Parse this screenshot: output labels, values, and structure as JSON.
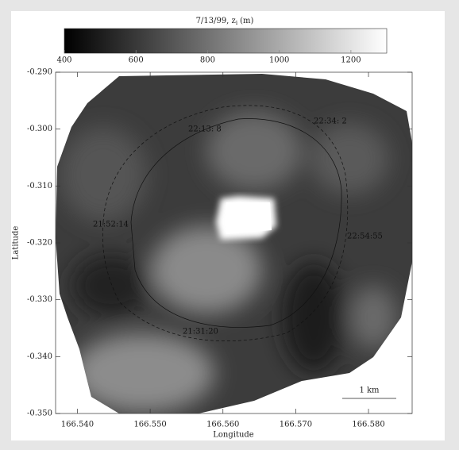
{
  "chart_data": {
    "type": "image-map",
    "title": {
      "main": "7/13/99, z",
      "sub": "i",
      "unit": "(m)"
    },
    "x_label": "Longitude",
    "y_label": "Latitude",
    "colorbar": {
      "clim": [
        400,
        1300
      ],
      "ticks": [
        400,
        600,
        800,
        1000,
        1200
      ]
    },
    "xlim": [
      166.537,
      166.586
    ],
    "xticks": [
      {
        "value": 166.54,
        "label": "166.540"
      },
      {
        "value": 166.55,
        "label": "166.550"
      },
      {
        "value": 166.56,
        "label": "166.560"
      },
      {
        "value": 166.57,
        "label": "166.570"
      },
      {
        "value": 166.58,
        "label": "166.580"
      }
    ],
    "ylim": [
      -0.35,
      -0.29
    ],
    "yticks": [
      {
        "value": -0.29,
        "label": "-0.290"
      },
      {
        "value": -0.3,
        "label": "-0.300"
      },
      {
        "value": -0.31,
        "label": "-0.310"
      },
      {
        "value": -0.32,
        "label": "-0.320"
      },
      {
        "value": -0.33,
        "label": "-0.330"
      },
      {
        "value": -0.34,
        "label": "-0.340"
      },
      {
        "value": -0.35,
        "label": "-0.350"
      }
    ],
    "annotations": [
      "22:13: 8",
      "22:34: 2",
      "21:52:14",
      "22:54:55",
      "21:31:20"
    ],
    "scale_bar": "1 km"
  }
}
